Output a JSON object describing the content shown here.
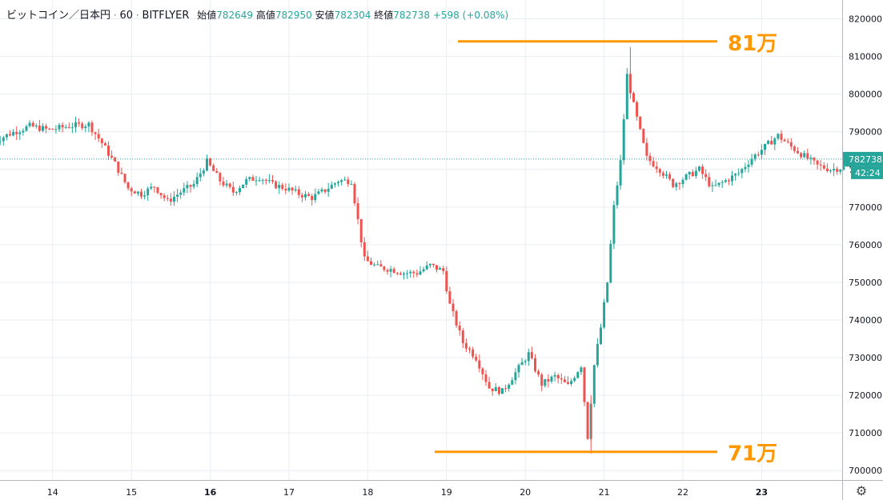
{
  "header": {
    "symbol": "ビットコイン／日本円",
    "interval": "60",
    "exchange": "BITFLYER",
    "open_label": "始値",
    "open": "782649",
    "high_label": "高値",
    "high": "782950",
    "low_label": "安値",
    "low": "782304",
    "close_label": "終値",
    "close": "782738",
    "change": "+598 (+0.08%)"
  },
  "price_tag": {
    "price": "782738",
    "countdown": "42:24"
  },
  "annotations": {
    "upper": "81万",
    "lower": "71万"
  },
  "colors": {
    "up": "#26a69a",
    "down": "#ef5350",
    "accent": "#ff9800",
    "grid": "#e9eef3",
    "text": "#131722"
  },
  "settings_icon": "gear-icon",
  "chart_data": {
    "type": "candlestick",
    "interval_minutes": 60,
    "y_ticks": [
      700000,
      710000,
      720000,
      730000,
      740000,
      750000,
      760000,
      770000,
      780000,
      790000,
      800000,
      810000,
      820000
    ],
    "ylim": [
      697500,
      825000
    ],
    "x_ticks": [
      "14",
      "15",
      "16",
      "17",
      "18",
      "19",
      "20",
      "21",
      "22",
      "23"
    ],
    "bold_x_ticks": [
      "16",
      "23"
    ],
    "last_price": 782738,
    "levels": [
      {
        "label": "81万",
        "price": 814000,
        "from": "19",
        "to": "22"
      },
      {
        "label": "71万",
        "price": 705000,
        "from": "18",
        "to": "22"
      }
    ],
    "anchors": [
      [
        0,
        787000
      ],
      [
        6,
        789500
      ],
      [
        12,
        791500
      ],
      [
        18,
        790500
      ],
      [
        24,
        791500
      ],
      [
        30,
        792000
      ],
      [
        34,
        787000
      ],
      [
        38,
        781500
      ],
      [
        42,
        775000
      ],
      [
        46,
        773500
      ],
      [
        50,
        775500
      ],
      [
        54,
        771500
      ],
      [
        58,
        774000
      ],
      [
        62,
        776000
      ],
      [
        66,
        782000
      ],
      [
        70,
        777000
      ],
      [
        74,
        774000
      ],
      [
        78,
        777000
      ],
      [
        82,
        778000
      ],
      [
        86,
        776000
      ],
      [
        90,
        775000
      ],
      [
        94,
        773500
      ],
      [
        98,
        772500
      ],
      [
        102,
        774500
      ],
      [
        106,
        777000
      ],
      [
        110,
        777000
      ],
      [
        114,
        756000
      ],
      [
        118,
        754000
      ],
      [
        122,
        753500
      ],
      [
        126,
        752500
      ],
      [
        130,
        752500
      ],
      [
        134,
        754500
      ],
      [
        138,
        753000
      ],
      [
        140,
        744000
      ],
      [
        144,
        734000
      ],
      [
        148,
        730000
      ],
      [
        152,
        722000
      ],
      [
        156,
        721000
      ],
      [
        160,
        726000
      ],
      [
        164,
        731000
      ],
      [
        168,
        723000
      ],
      [
        172,
        725000
      ],
      [
        176,
        722500
      ],
      [
        180,
        728000
      ],
      [
        182,
        709000
      ],
      [
        184,
        728000
      ],
      [
        186,
        738000
      ],
      [
        188,
        750000
      ],
      [
        190,
        770000
      ],
      [
        192,
        782000
      ],
      [
        194,
        805000
      ],
      [
        196,
        797000
      ],
      [
        198,
        790000
      ],
      [
        200,
        783000
      ],
      [
        204,
        780000
      ],
      [
        208,
        776000
      ],
      [
        212,
        778000
      ],
      [
        216,
        780000
      ],
      [
        220,
        775000
      ],
      [
        224,
        777000
      ],
      [
        228,
        779000
      ],
      [
        232,
        783000
      ],
      [
        236,
        786000
      ],
      [
        240,
        789000
      ],
      [
        244,
        786000
      ],
      [
        248,
        783500
      ],
      [
        252,
        781000
      ],
      [
        256,
        780000
      ],
      [
        260,
        780500
      ],
      [
        264,
        781500
      ],
      [
        268,
        781000
      ],
      [
        272,
        781500
      ]
    ]
  }
}
